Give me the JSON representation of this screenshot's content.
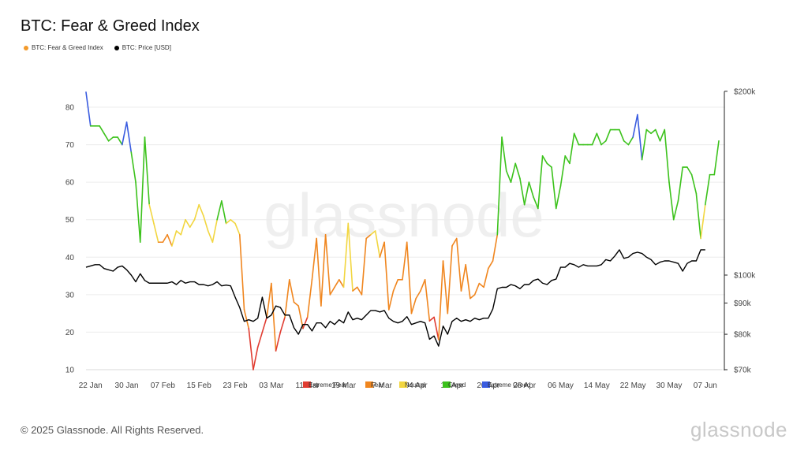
{
  "header": {
    "title": "BTC: Fear & Greed Index"
  },
  "legend": [
    {
      "label": "BTC: Fear & Greed Index",
      "color": "#f39a2b"
    },
    {
      "label": "BTC: Price [USD]",
      "color": "#000000"
    }
  ],
  "footer": {
    "copyright": "© 2025 Glassnode. All Rights Reserved.",
    "brand": "glassnode"
  },
  "watermark": "glassnode",
  "colors": {
    "extreme_fear": "#e03c31",
    "fear": "#f0861f",
    "neutral": "#f2d640",
    "greed": "#3cc21c",
    "extreme_greed": "#3a5ce0",
    "price": "#000000"
  },
  "chart_data": {
    "type": "line",
    "title": "BTC: Fear & Greed Index",
    "x_ticks": [
      "22 Jan",
      "30 Jan",
      "07 Feb",
      "15 Feb",
      "23 Feb",
      "03 Mar",
      "11 Mar",
      "19 Mar",
      "27 Mar",
      "04 Apr",
      "12 Apr",
      "20 Apr",
      "28 Apr",
      "06 May",
      "14 May",
      "22 May",
      "30 May",
      "07 Jun"
    ],
    "left_axis": {
      "ticks": [
        10,
        20,
        30,
        40,
        50,
        60,
        70,
        80
      ],
      "range": [
        10,
        85
      ]
    },
    "right_axis": {
      "ticks": [
        "$70k",
        "$80k",
        "$90k",
        "$100k",
        "$200k"
      ],
      "scale": "log"
    },
    "zones": [
      {
        "label": "Extreme Fear",
        "max": 25,
        "color": "#e03c31"
      },
      {
        "label": "Fear",
        "max": 46,
        "color": "#f0861f"
      },
      {
        "label": "Neutral",
        "max": 54,
        "color": "#f2d640"
      },
      {
        "label": "Greed",
        "max": 75,
        "color": "#3cc21c"
      },
      {
        "label": "Extreme Greed",
        "max": 100,
        "color": "#3a5ce0"
      }
    ],
    "start_date": "2025-01-21",
    "series": [
      {
        "name": "BTC: Fear & Greed Index",
        "values": [
          84,
          75,
          75,
          75,
          73,
          71,
          72,
          72,
          70,
          76,
          68,
          60,
          44,
          72,
          54,
          49,
          44,
          44,
          46,
          43,
          47,
          46,
          50,
          48,
          50,
          54,
          51,
          47,
          44,
          50,
          55,
          49,
          50,
          49,
          46,
          26,
          21,
          10,
          16,
          20,
          24,
          33,
          15,
          20,
          24,
          34,
          28,
          27,
          21,
          24,
          34,
          45,
          27,
          46,
          30,
          32,
          34,
          32,
          49,
          31,
          32,
          30,
          45,
          46,
          47,
          40,
          44,
          26,
          31,
          34,
          34,
          44,
          25,
          29,
          31,
          34,
          23,
          24,
          18,
          39,
          25,
          43,
          45,
          31,
          38,
          29,
          30,
          33,
          32,
          37,
          39,
          46,
          72,
          63,
          60,
          65,
          61,
          54,
          60,
          56,
          53,
          67,
          65,
          64,
          53,
          59,
          67,
          65,
          73,
          70,
          70,
          70,
          70,
          73,
          70,
          71,
          74,
          74,
          74,
          71,
          70,
          72,
          78,
          66,
          74,
          73,
          74,
          71,
          74,
          60,
          50,
          55,
          64,
          64,
          62,
          57,
          45,
          54,
          62,
          62,
          71
        ]
      },
      {
        "name": "BTC: Price [USD]",
        "values": [
          103000,
          103500,
          104000,
          104000,
          102500,
          102000,
          101500,
          103000,
          103500,
          102000,
          100000,
          97500,
          100500,
          98000,
          97000,
          97000,
          97000,
          97000,
          97000,
          97500,
          96500,
          98000,
          97000,
          97500,
          97500,
          96500,
          96500,
          96000,
          96500,
          97500,
          96000,
          96300,
          96000,
          92000,
          88500,
          84000,
          84500,
          84000,
          85000,
          92000,
          85000,
          86000,
          89000,
          88500,
          86000,
          86000,
          82000,
          80000,
          83000,
          83000,
          81000,
          83500,
          83500,
          82000,
          84000,
          83000,
          84500,
          83500,
          87000,
          84500,
          85000,
          84500,
          86000,
          87500,
          87500,
          87000,
          87500,
          85000,
          84000,
          83500,
          84000,
          85500,
          83000,
          83500,
          84000,
          83500,
          78500,
          79500,
          76500,
          82500,
          80000,
          84000,
          85000,
          84000,
          84500,
          84000,
          85000,
          84500,
          85000,
          85000,
          88000,
          95000,
          95500,
          95500,
          96500,
          96000,
          95000,
          96500,
          96500,
          98000,
          98500,
          97000,
          96500,
          98000,
          98500,
          103000,
          103000,
          104500,
          104000,
          103000,
          104000,
          103500,
          103500,
          103500,
          104000,
          106000,
          105500,
          107500,
          110000,
          106500,
          107000,
          108500,
          109000,
          108500,
          107000,
          106000,
          104000,
          105000,
          105500,
          105500,
          105000,
          104500,
          101500,
          104500,
          105500,
          105500,
          110000,
          110000
        ]
      }
    ]
  }
}
